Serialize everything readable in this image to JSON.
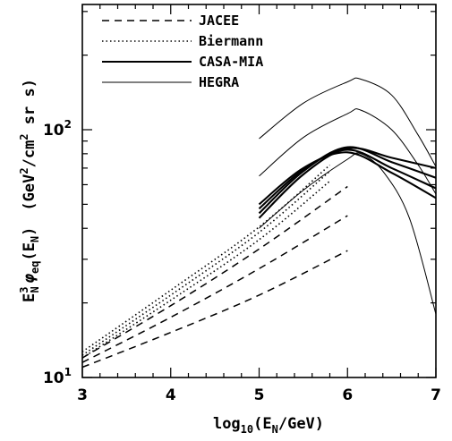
{
  "chart_data": {
    "type": "line",
    "xlabel": {
      "prefix": "log",
      "sub": "10",
      "open": "(E",
      "sub2": "N",
      "close": "/GeV)"
    },
    "ylabel": {
      "e": "E",
      "sup": "3",
      "sub": "N",
      "phi": "φ",
      "phi_sub": "eq",
      "arg_open": "(E",
      "arg_sub": "N",
      "arg_close": ")",
      "unit_open": "(GeV",
      "unit_sup1": "2",
      "unit_mid": "/cm",
      "unit_sup2": "2",
      "unit_close": " sr s)"
    },
    "x_ticks": [
      "3",
      "4",
      "5",
      "6",
      "7"
    ],
    "y_ticks": [
      {
        "value": 10,
        "base": "10",
        "exp": "1"
      },
      {
        "value": 100,
        "base": "10",
        "exp": "2"
      }
    ],
    "xlim": [
      3,
      7
    ],
    "ylim": [
      10,
      350
    ],
    "log_y": true,
    "legend": {
      "placement": "top-left",
      "entries": [
        {
          "label": "JACEE",
          "style": "dashed"
        },
        {
          "label": "Biermann",
          "style": "dotted"
        },
        {
          "label": "CASA-MIA",
          "style": "solid-thick"
        },
        {
          "label": "HEGRA",
          "style": "solid-thin"
        }
      ]
    },
    "series": [
      {
        "group": "JACEE",
        "style": "dashed",
        "x": [
          3,
          4,
          5,
          6
        ],
        "y": [
          11.0,
          15.2,
          21.5,
          32.5
        ]
      },
      {
        "group": "JACEE",
        "style": "dashed",
        "x": [
          3,
          4,
          5,
          6
        ],
        "y": [
          11.5,
          17.5,
          27.5,
          45.0
        ]
      },
      {
        "group": "JACEE",
        "style": "dashed",
        "x": [
          3,
          4,
          5,
          6
        ],
        "y": [
          12.0,
          19.5,
          33.0,
          59.0
        ]
      },
      {
        "group": "Biermann",
        "style": "dotted",
        "x": [
          3,
          4,
          5,
          5.8
        ],
        "y": [
          12.0,
          20.5,
          36.0,
          62.0
        ]
      },
      {
        "group": "Biermann",
        "style": "dotted",
        "x": [
          3,
          4,
          5,
          5.8
        ],
        "y": [
          12.3,
          21.5,
          38.5,
          68.0
        ]
      },
      {
        "group": "Biermann",
        "style": "dotted",
        "x": [
          3,
          4,
          5,
          5.8
        ],
        "y": [
          12.7,
          22.5,
          40.5,
          72.0
        ]
      },
      {
        "group": "CASA-MIA",
        "style": "solid-thick",
        "x": [
          5,
          5.5,
          6,
          6.5,
          7
        ],
        "y": [
          44.0,
          66.0,
          84.0,
          77.0,
          70.0
        ]
      },
      {
        "group": "CASA-MIA",
        "style": "solid-thick",
        "x": [
          5,
          5.5,
          6,
          6.5,
          7
        ],
        "y": [
          46.0,
          68.0,
          85.0,
          74.0,
          64.0
        ]
      },
      {
        "group": "CASA-MIA",
        "style": "solid-thick",
        "x": [
          5,
          5.5,
          6,
          6.5,
          7
        ],
        "y": [
          48.0,
          69.0,
          83.0,
          70.0,
          58.0
        ]
      },
      {
        "group": "CASA-MIA",
        "style": "solid-thick",
        "x": [
          5,
          5.5,
          6,
          6.5,
          7
        ],
        "y": [
          50.0,
          70.0,
          81.0,
          67.0,
          53.0
        ]
      },
      {
        "group": "HEGRA",
        "style": "solid-thin",
        "x": [
          5,
          5.5,
          6,
          6.15,
          6.5,
          6.8,
          7
        ],
        "y": [
          92.0,
          128.0,
          156.0,
          160.0,
          138.0,
          95.0,
          71.0
        ]
      },
      {
        "group": "HEGRA",
        "style": "solid-thin",
        "x": [
          5,
          5.5,
          6,
          6.15,
          6.5,
          6.8,
          7
        ],
        "y": [
          65.0,
          93.0,
          116.0,
          120.0,
          100.0,
          72.0,
          55.0
        ]
      },
      {
        "group": "HEGRA",
        "style": "solid-thin",
        "x": [
          5,
          5.5,
          6,
          6.15,
          6.4,
          6.7,
          7
        ],
        "y": [
          40.0,
          57.0,
          76.0,
          80.0,
          68.0,
          44.0,
          18.0
        ]
      }
    ]
  }
}
